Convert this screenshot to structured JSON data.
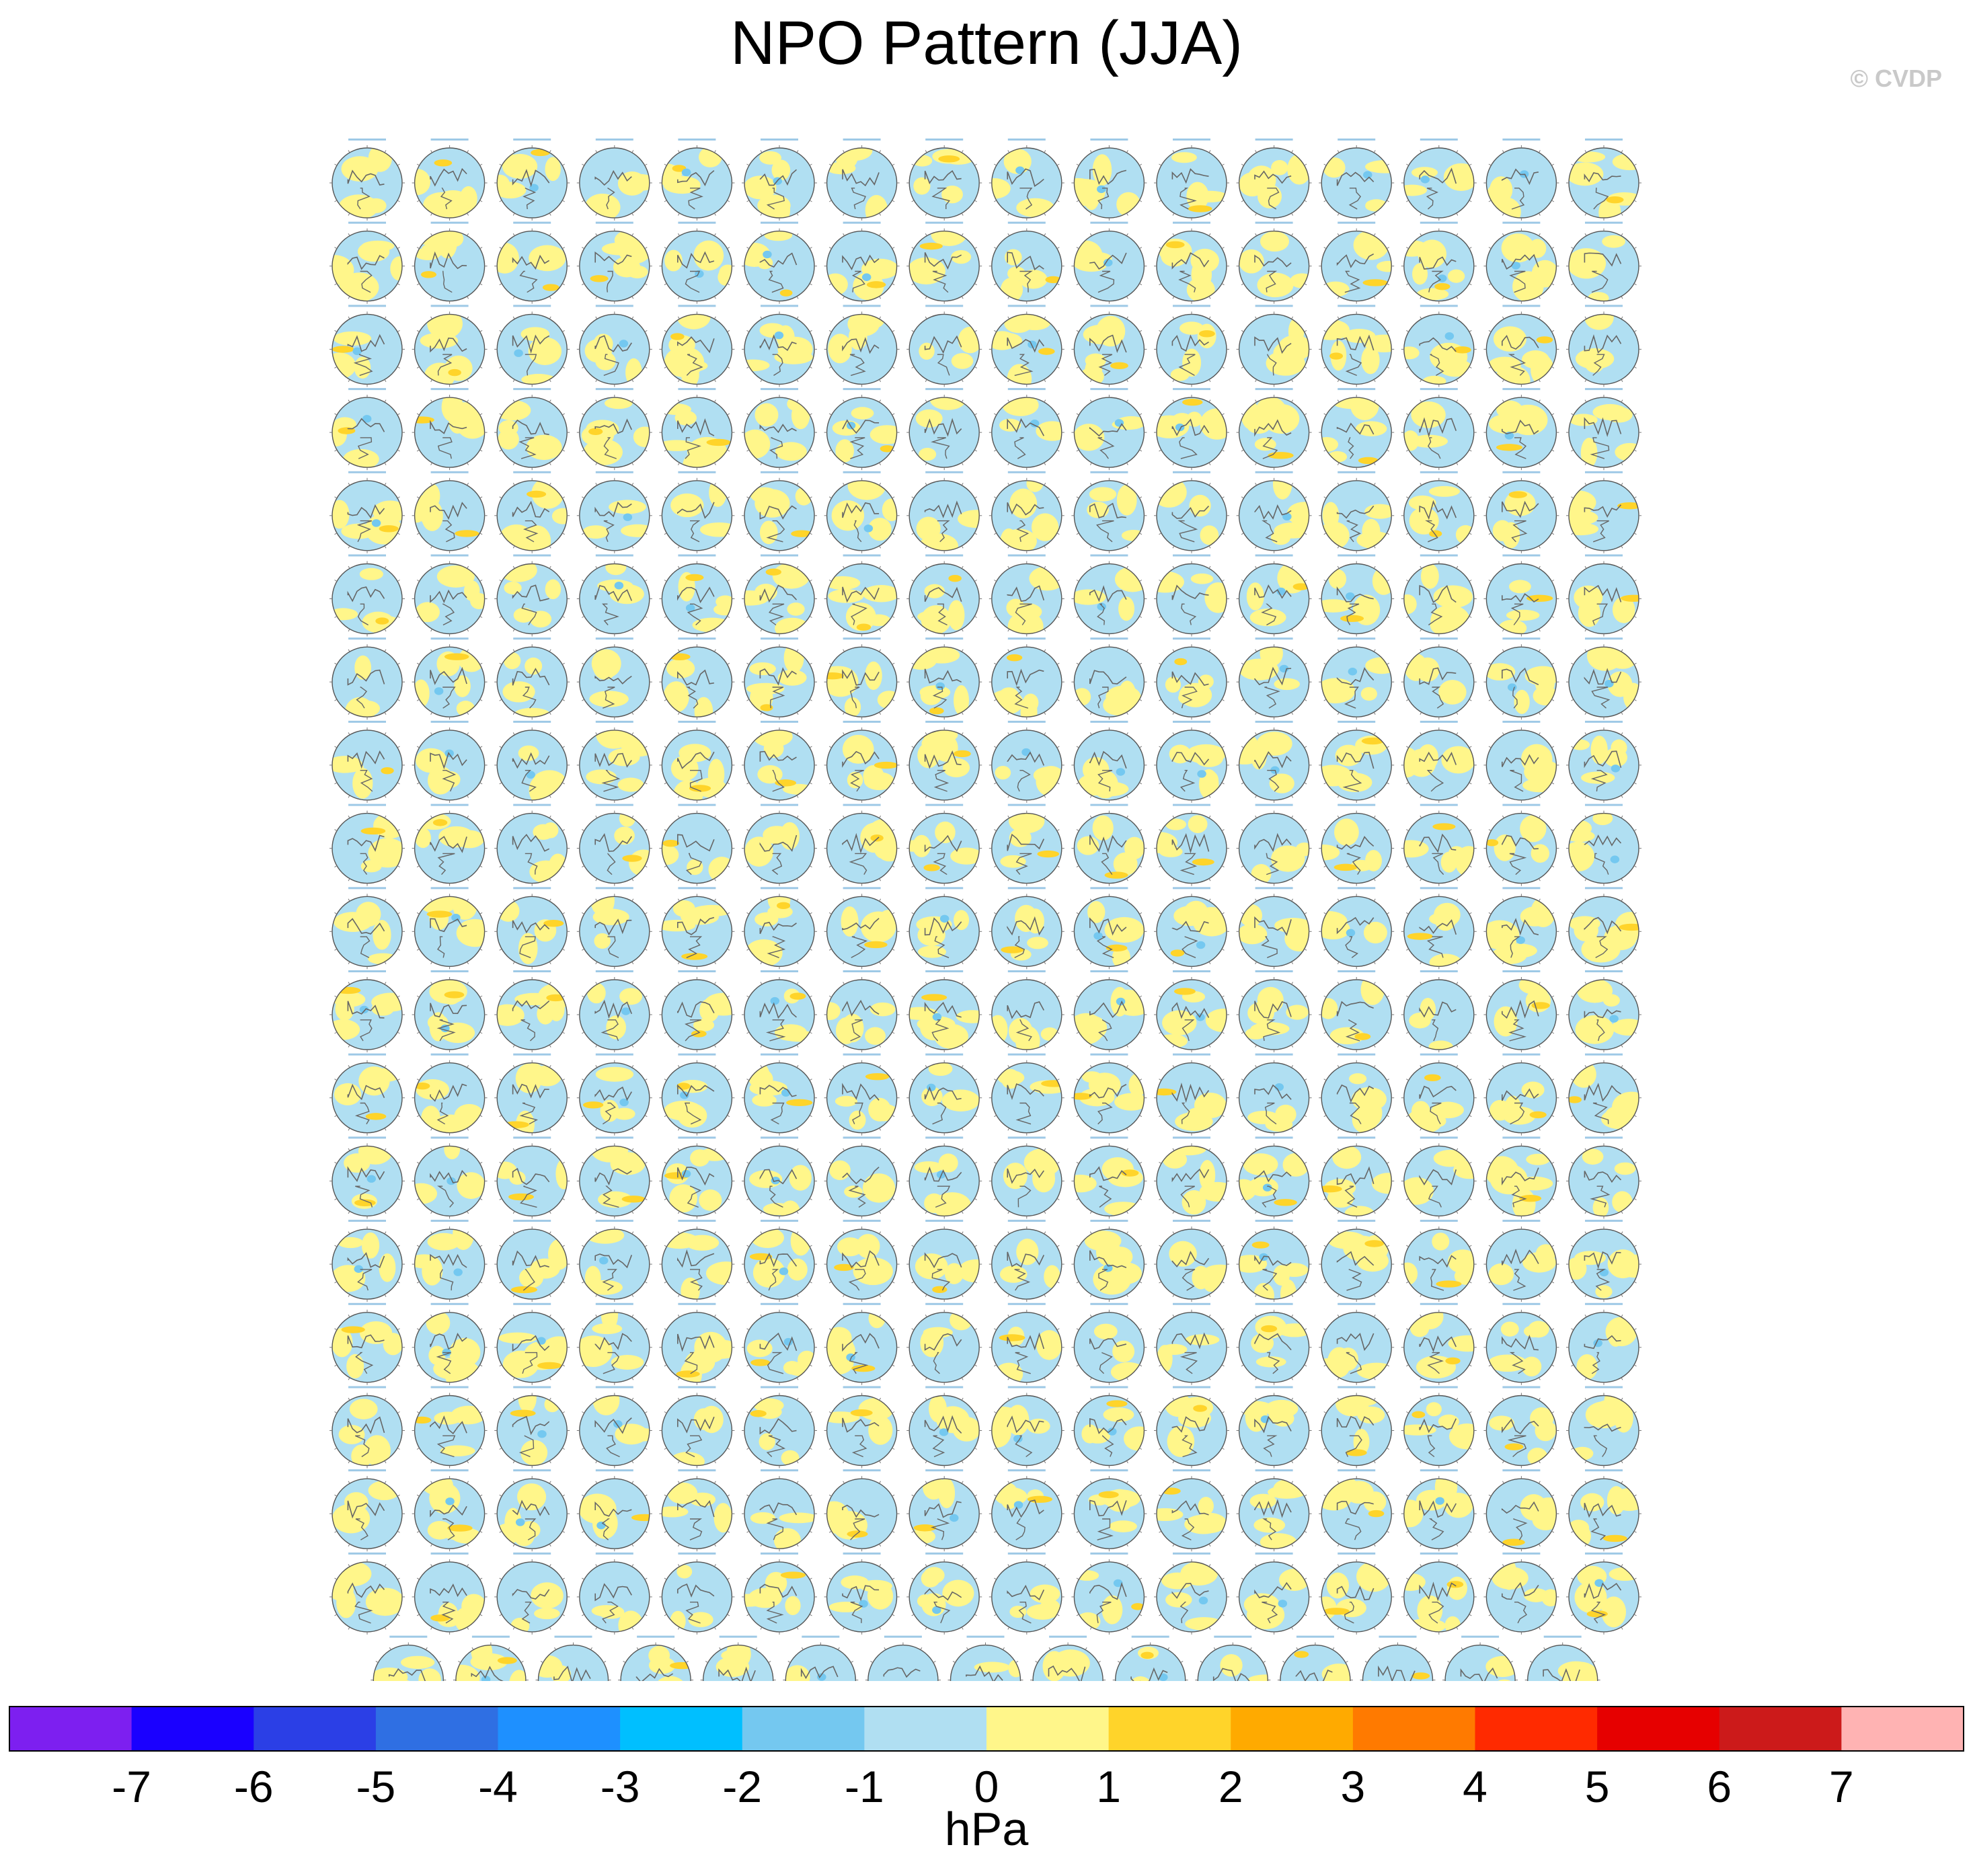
{
  "header": {
    "title": "NPO Pattern (JJA)",
    "credit": "© CVDP"
  },
  "chart_data": {
    "type": "heatmap",
    "title": "NPO Pattern (JJA)",
    "panel_layout": {
      "rows_full": 18,
      "cols_full": 16,
      "last_row_count": 15
    },
    "colorbar": {
      "units": "hPa",
      "ticks": [
        -7,
        -6,
        -5,
        -4,
        -3,
        -2,
        -1,
        0,
        1,
        2,
        3,
        4,
        5,
        6,
        7
      ],
      "tick_labels": [
        "-7",
        "-6",
        "-5",
        "-4",
        "-3",
        "-2",
        "-1",
        "0",
        "1",
        "2",
        "3",
        "4",
        "5",
        "6",
        "7"
      ],
      "colors": [
        "#7d1ff0",
        "#1a00ff",
        "#2b3fe6",
        "#2f6fe3",
        "#1e90ff",
        "#00bfff",
        "#74c8f0",
        "#b0dff2",
        "#fff68a",
        "#ffd42a",
        "#ffaa00",
        "#ff7a00",
        "#ff2a00",
        "#e60000",
        "#cc1a1a",
        "#ffb3b3"
      ]
    }
  }
}
